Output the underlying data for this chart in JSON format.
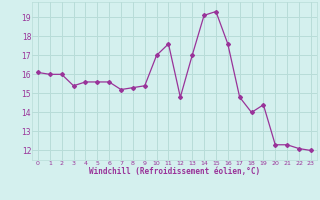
{
  "x": [
    0,
    1,
    2,
    3,
    4,
    5,
    6,
    7,
    8,
    9,
    10,
    11,
    12,
    13,
    14,
    15,
    16,
    17,
    18,
    19,
    20,
    21,
    22,
    23
  ],
  "y": [
    16.1,
    16.0,
    16.0,
    15.4,
    15.6,
    15.6,
    15.6,
    15.2,
    15.3,
    15.4,
    17.0,
    17.6,
    14.8,
    17.0,
    19.1,
    19.3,
    17.6,
    14.8,
    14.0,
    14.4,
    12.3,
    12.3,
    12.1,
    12.0
  ],
  "line_color": "#993399",
  "marker": "D",
  "marker_size": 2.0,
  "bg_color": "#d4f0ee",
  "grid_color": "#b8dcd8",
  "xlabel": "Windchill (Refroidissement éolien,°C)",
  "xlabel_color": "#993399",
  "tick_color": "#993399",
  "ylim": [
    11.5,
    19.8
  ],
  "xlim": [
    -0.5,
    23.5
  ],
  "yticks": [
    12,
    13,
    14,
    15,
    16,
    17,
    18,
    19
  ],
  "xticks": [
    0,
    1,
    2,
    3,
    4,
    5,
    6,
    7,
    8,
    9,
    10,
    11,
    12,
    13,
    14,
    15,
    16,
    17,
    18,
    19,
    20,
    21,
    22,
    23
  ]
}
